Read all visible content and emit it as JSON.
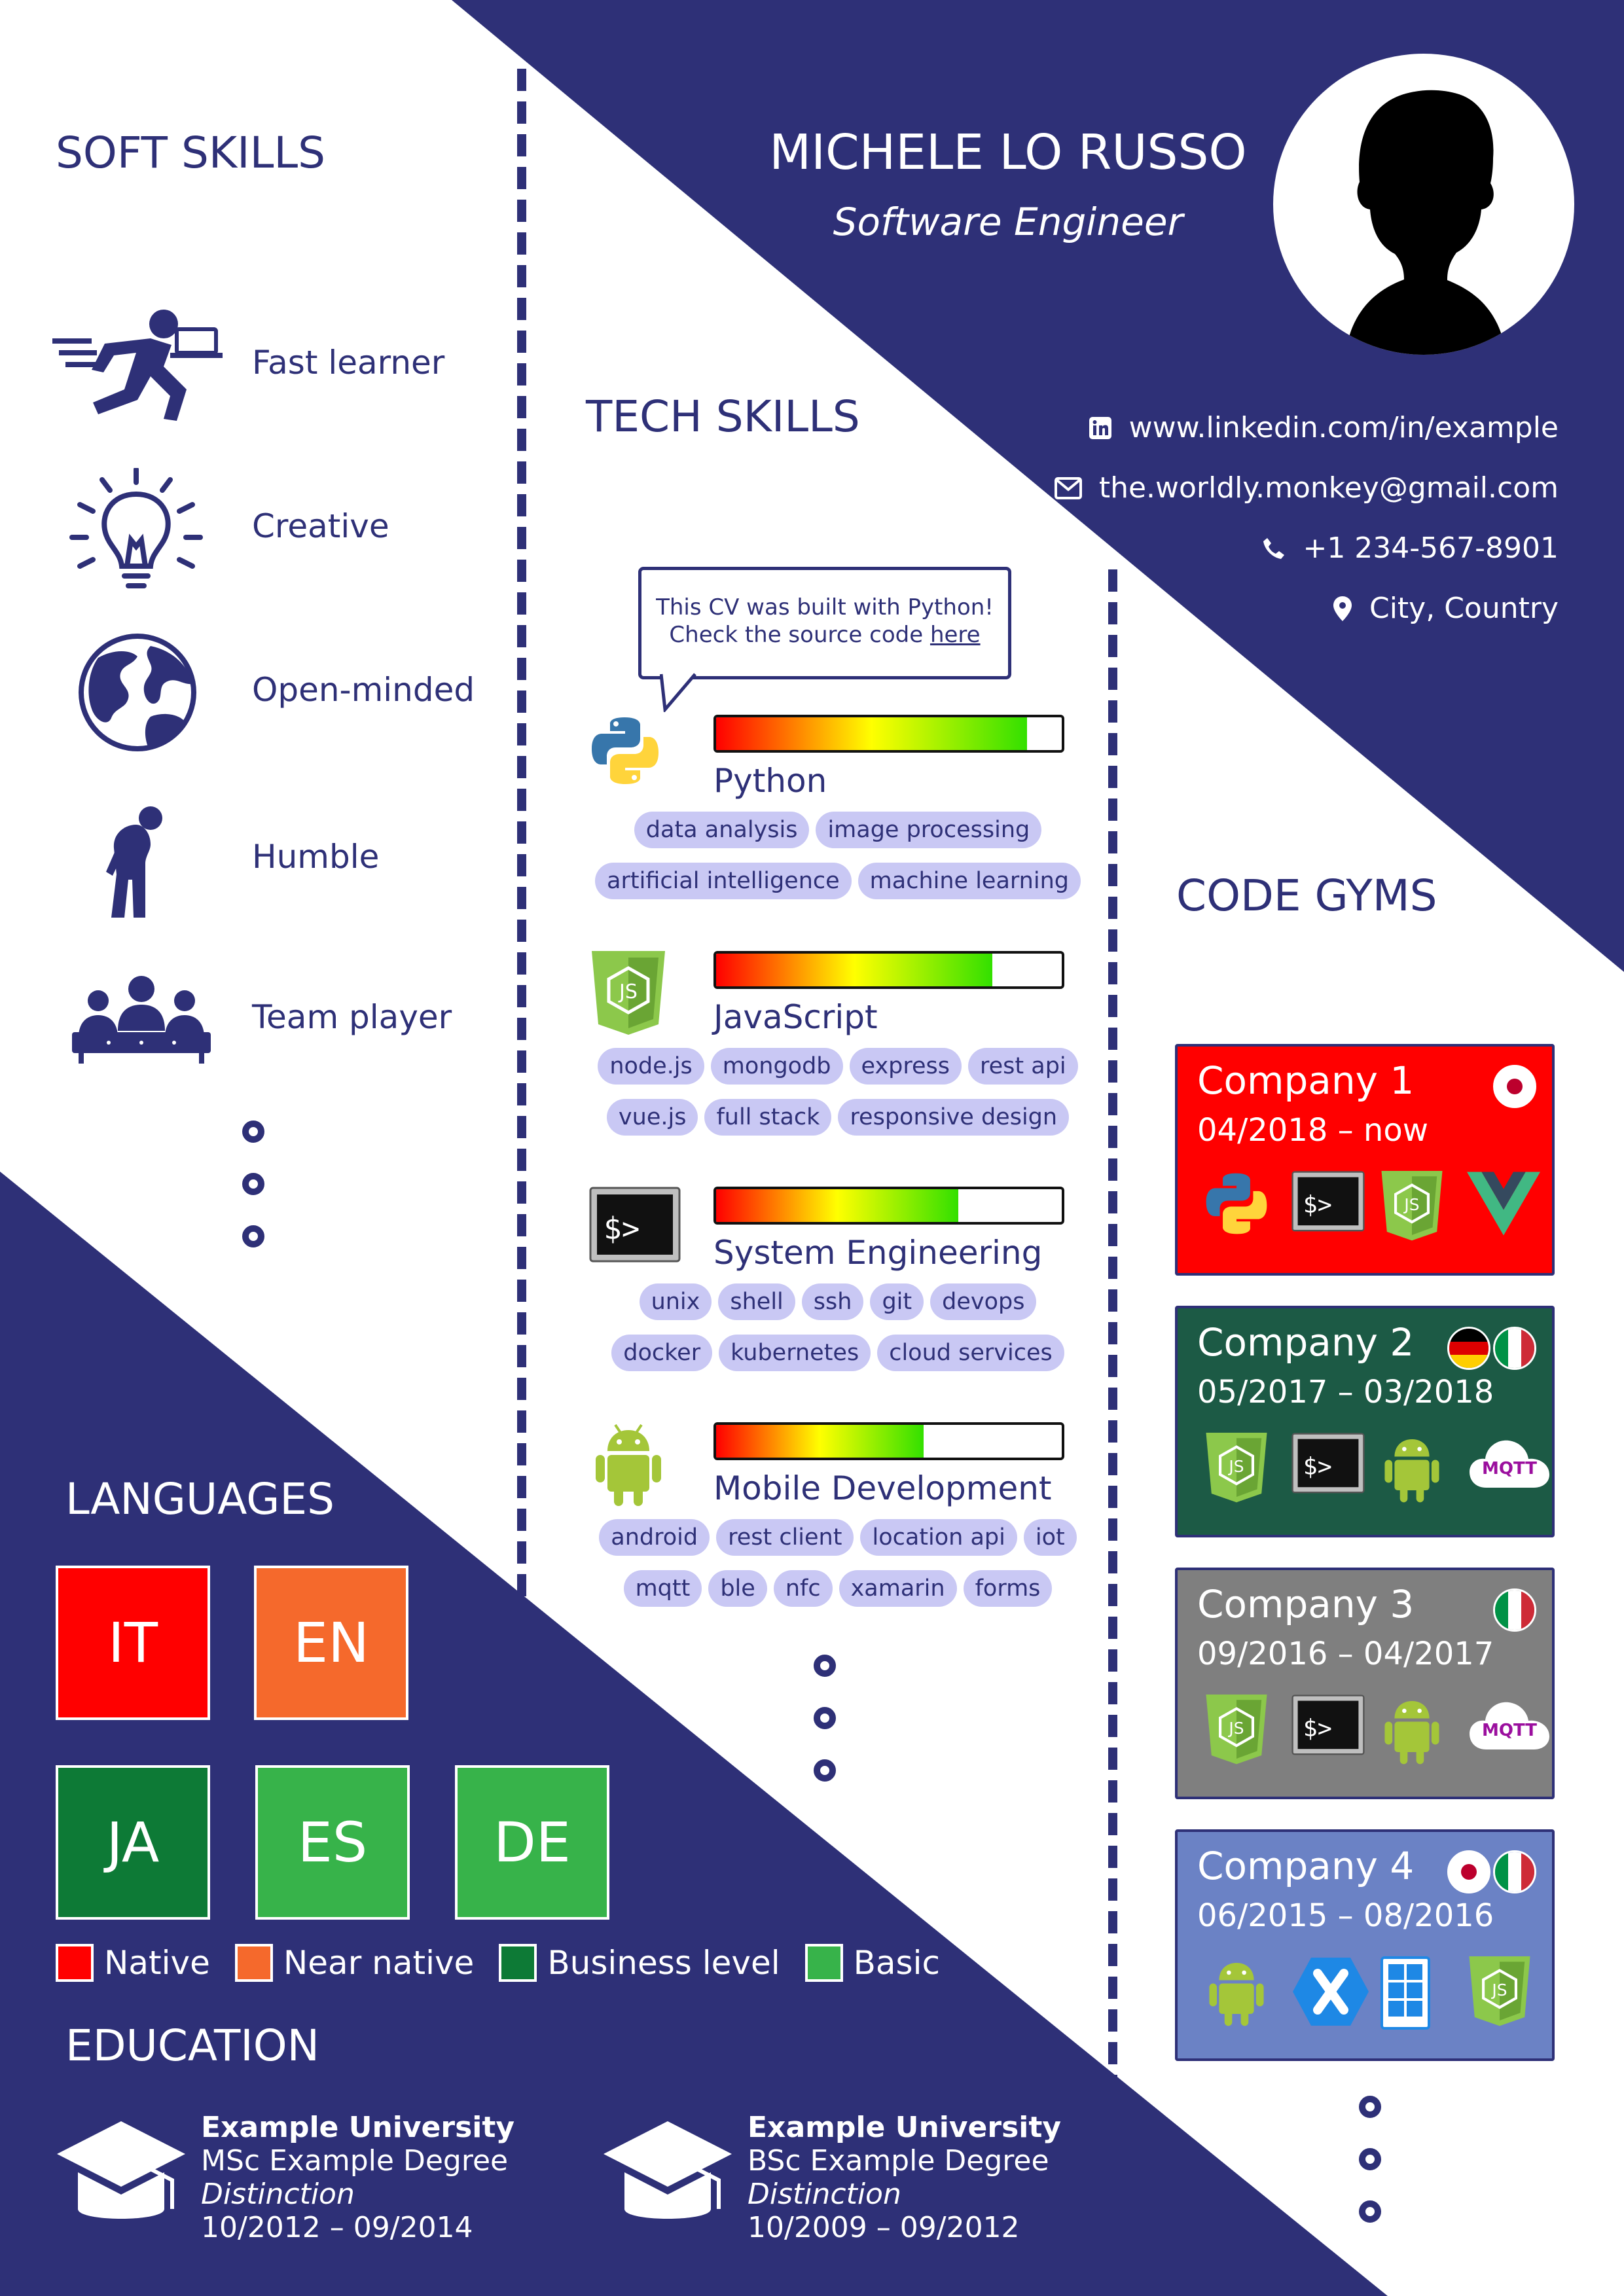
{
  "colors": {
    "navy": "#2e3077",
    "tag_bg": "#c9c8f4",
    "native": "#ff0000",
    "near_native": "#f5692c",
    "business": "#0d7a36",
    "basic": "#37b34a"
  },
  "header": {
    "name": "MICHELE LO RUSSO",
    "job_title": "Software Engineer",
    "avatar_icon": "person-silhouette-icon",
    "contacts": [
      {
        "icon": "linkedin-icon",
        "text": "www.linkedin.com/in/example"
      },
      {
        "icon": "envelope-icon",
        "text": "the.worldly.monkey@gmail.com"
      },
      {
        "icon": "phone-icon",
        "text": "+1 234-567-8901"
      },
      {
        "icon": "location-pin-icon",
        "text": "City, Country"
      }
    ]
  },
  "soft_skills": {
    "title": "SOFT SKILLS",
    "items": [
      {
        "icon": "running-person-icon",
        "label": "Fast learner"
      },
      {
        "icon": "lightbulb-icon",
        "label": "Creative"
      },
      {
        "icon": "globe-icon",
        "label": "Open-minded"
      },
      {
        "icon": "bowing-person-icon",
        "label": "Humble"
      },
      {
        "icon": "team-icon",
        "label": "Team player"
      }
    ]
  },
  "tech_skills": {
    "title": "TECH SKILLS",
    "note_line1": "This CV was built with Python!",
    "note_line2_prefix": "Check the source code ",
    "note_link": "here",
    "skills": [
      {
        "name": "Python",
        "icon": "python-icon",
        "level": 0.9,
        "tags": [
          [
            "data analysis",
            "image processing"
          ],
          [
            "artificial intelligence",
            "machine learning"
          ]
        ]
      },
      {
        "name": "JavaScript",
        "icon": "nodejs-icon",
        "level": 0.8,
        "tags": [
          [
            "node.js",
            "mongodb",
            "express",
            "rest api"
          ],
          [
            "vue.js",
            "full stack",
            "responsive design"
          ]
        ]
      },
      {
        "name": "System Engineering",
        "icon": "terminal-icon",
        "level": 0.7,
        "tags": [
          [
            "unix",
            "shell",
            "ssh",
            "git",
            "devops"
          ],
          [
            "docker",
            "kubernetes",
            "cloud services"
          ]
        ]
      },
      {
        "name": "Mobile Development",
        "icon": "android-icon",
        "level": 0.6,
        "tags": [
          [
            "android",
            "rest client",
            "location api",
            "iot"
          ],
          [
            "mqtt",
            "ble",
            "nfc",
            "xamarin",
            "forms"
          ]
        ]
      }
    ]
  },
  "code_gyms": {
    "title": "CODE GYMS",
    "companies": [
      {
        "name": "Company 1",
        "dates": "04/2018 – now",
        "color": "#ff0000",
        "flags": [
          "japan-flag-icon"
        ],
        "icons": [
          "python-icon",
          "terminal-icon",
          "nodejs-icon",
          "vue-icon"
        ]
      },
      {
        "name": "Company 2",
        "dates": "05/2017 – 03/2018",
        "color": "#1c5a45",
        "flags": [
          "germany-flag-icon",
          "italy-flag-icon"
        ],
        "icons": [
          "nodejs-icon",
          "terminal-icon",
          "android-icon",
          "mqtt-cloud-icon"
        ]
      },
      {
        "name": "Company 3",
        "dates": "09/2016 – 04/2017",
        "color": "#7f7f7f",
        "flags": [
          "italy-flag-icon"
        ],
        "icons": [
          "nodejs-icon",
          "terminal-icon",
          "android-icon",
          "mqtt-cloud-icon"
        ]
      },
      {
        "name": "Company 4",
        "dates": "06/2015 – 08/2016",
        "color": "#6b82c5",
        "flags": [
          "japan-flag-icon",
          "italy-flag-icon"
        ],
        "icons": [
          "android-icon",
          "xamarin-icon",
          "windows-phone-icon",
          "nodejs-icon"
        ]
      }
    ],
    "mqtt_text": "MQTT"
  },
  "languages": {
    "title": "LANGUAGES",
    "items": [
      {
        "code": "IT",
        "level": "native"
      },
      {
        "code": "EN",
        "level": "near_native"
      },
      {
        "code": "JA",
        "level": "business"
      },
      {
        "code": "ES",
        "level": "basic"
      },
      {
        "code": "DE",
        "level": "basic"
      }
    ],
    "legend": [
      {
        "key": "native",
        "label": "Native"
      },
      {
        "key": "near_native",
        "label": "Near native"
      },
      {
        "key": "business",
        "label": "Business level"
      },
      {
        "key": "basic",
        "label": "Basic"
      }
    ]
  },
  "education": {
    "title": "EDUCATION",
    "items": [
      {
        "icon": "graduation-cap-icon",
        "university": "Example University",
        "degree": "MSc Example Degree",
        "grade": "Distinction",
        "dates": "10/2012 – 09/2014"
      },
      {
        "icon": "graduation-cap-icon",
        "university": "Example University",
        "degree": "BSc Example Degree",
        "grade": "Distinction",
        "dates": "10/2009 – 09/2012"
      }
    ]
  }
}
